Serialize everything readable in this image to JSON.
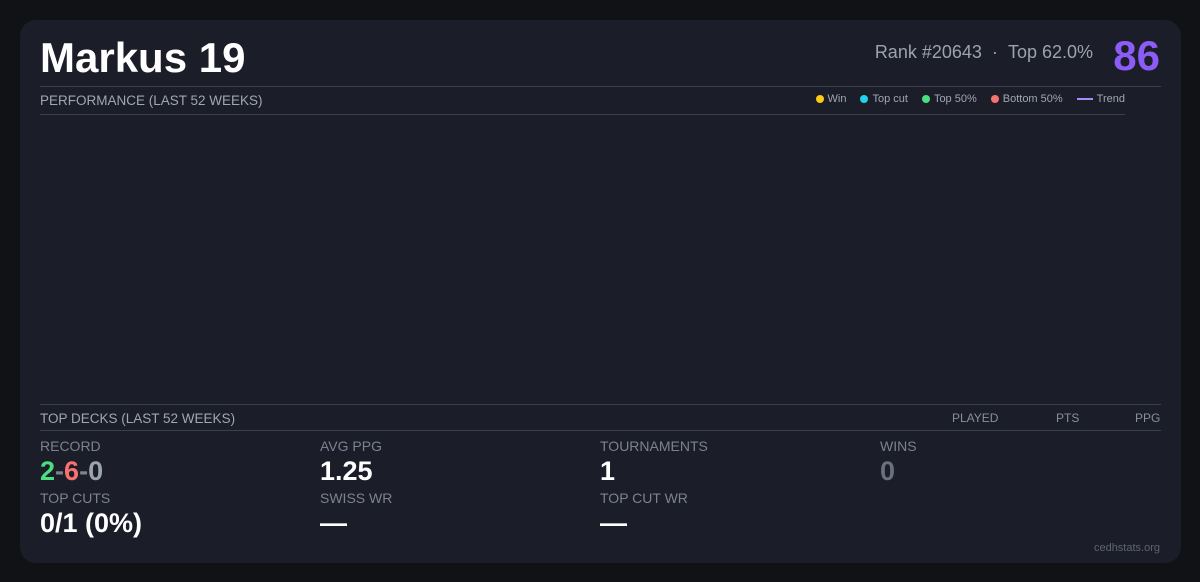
{
  "header": {
    "title": "Markus 19",
    "rank": "Rank #20643",
    "separator": "·",
    "top": "Top 62.0%",
    "score": "86"
  },
  "performance": {
    "title": "PERFORMANCE (LAST 52 WEEKS)",
    "legend": [
      {
        "label": "Win",
        "color": "#facc15"
      },
      {
        "label": "Top cut",
        "color": "#22d3ee"
      },
      {
        "label": "Top 50%",
        "color": "#4ade80"
      },
      {
        "label": "Bottom 50%",
        "color": "#f87171"
      },
      {
        "label": "Trend",
        "color": "#a78bfa"
      }
    ]
  },
  "top_decks": {
    "title": "TOP DECKS (LAST 52 WEEKS)",
    "columns": [
      "PLAYED",
      "PTS",
      "PPG"
    ]
  },
  "stats": {
    "record": {
      "label": "RECORD",
      "wins": "2",
      "losses": "6",
      "draws": "0",
      "sep": "-"
    },
    "avg_ppg": {
      "label": "AVG PPG",
      "value": "1.25"
    },
    "tournaments": {
      "label": "TOURNAMENTS",
      "value": "1"
    },
    "wins": {
      "label": "WINS",
      "value": "0"
    },
    "top_cuts": {
      "label": "TOP CUTS",
      "value": "0/1 (0%)"
    },
    "swiss_wr": {
      "label": "SWISS WR",
      "value": "—"
    },
    "top_cut_wr": {
      "label": "TOP CUT WR",
      "value": "—"
    }
  },
  "footer": "cedhstats.org"
}
